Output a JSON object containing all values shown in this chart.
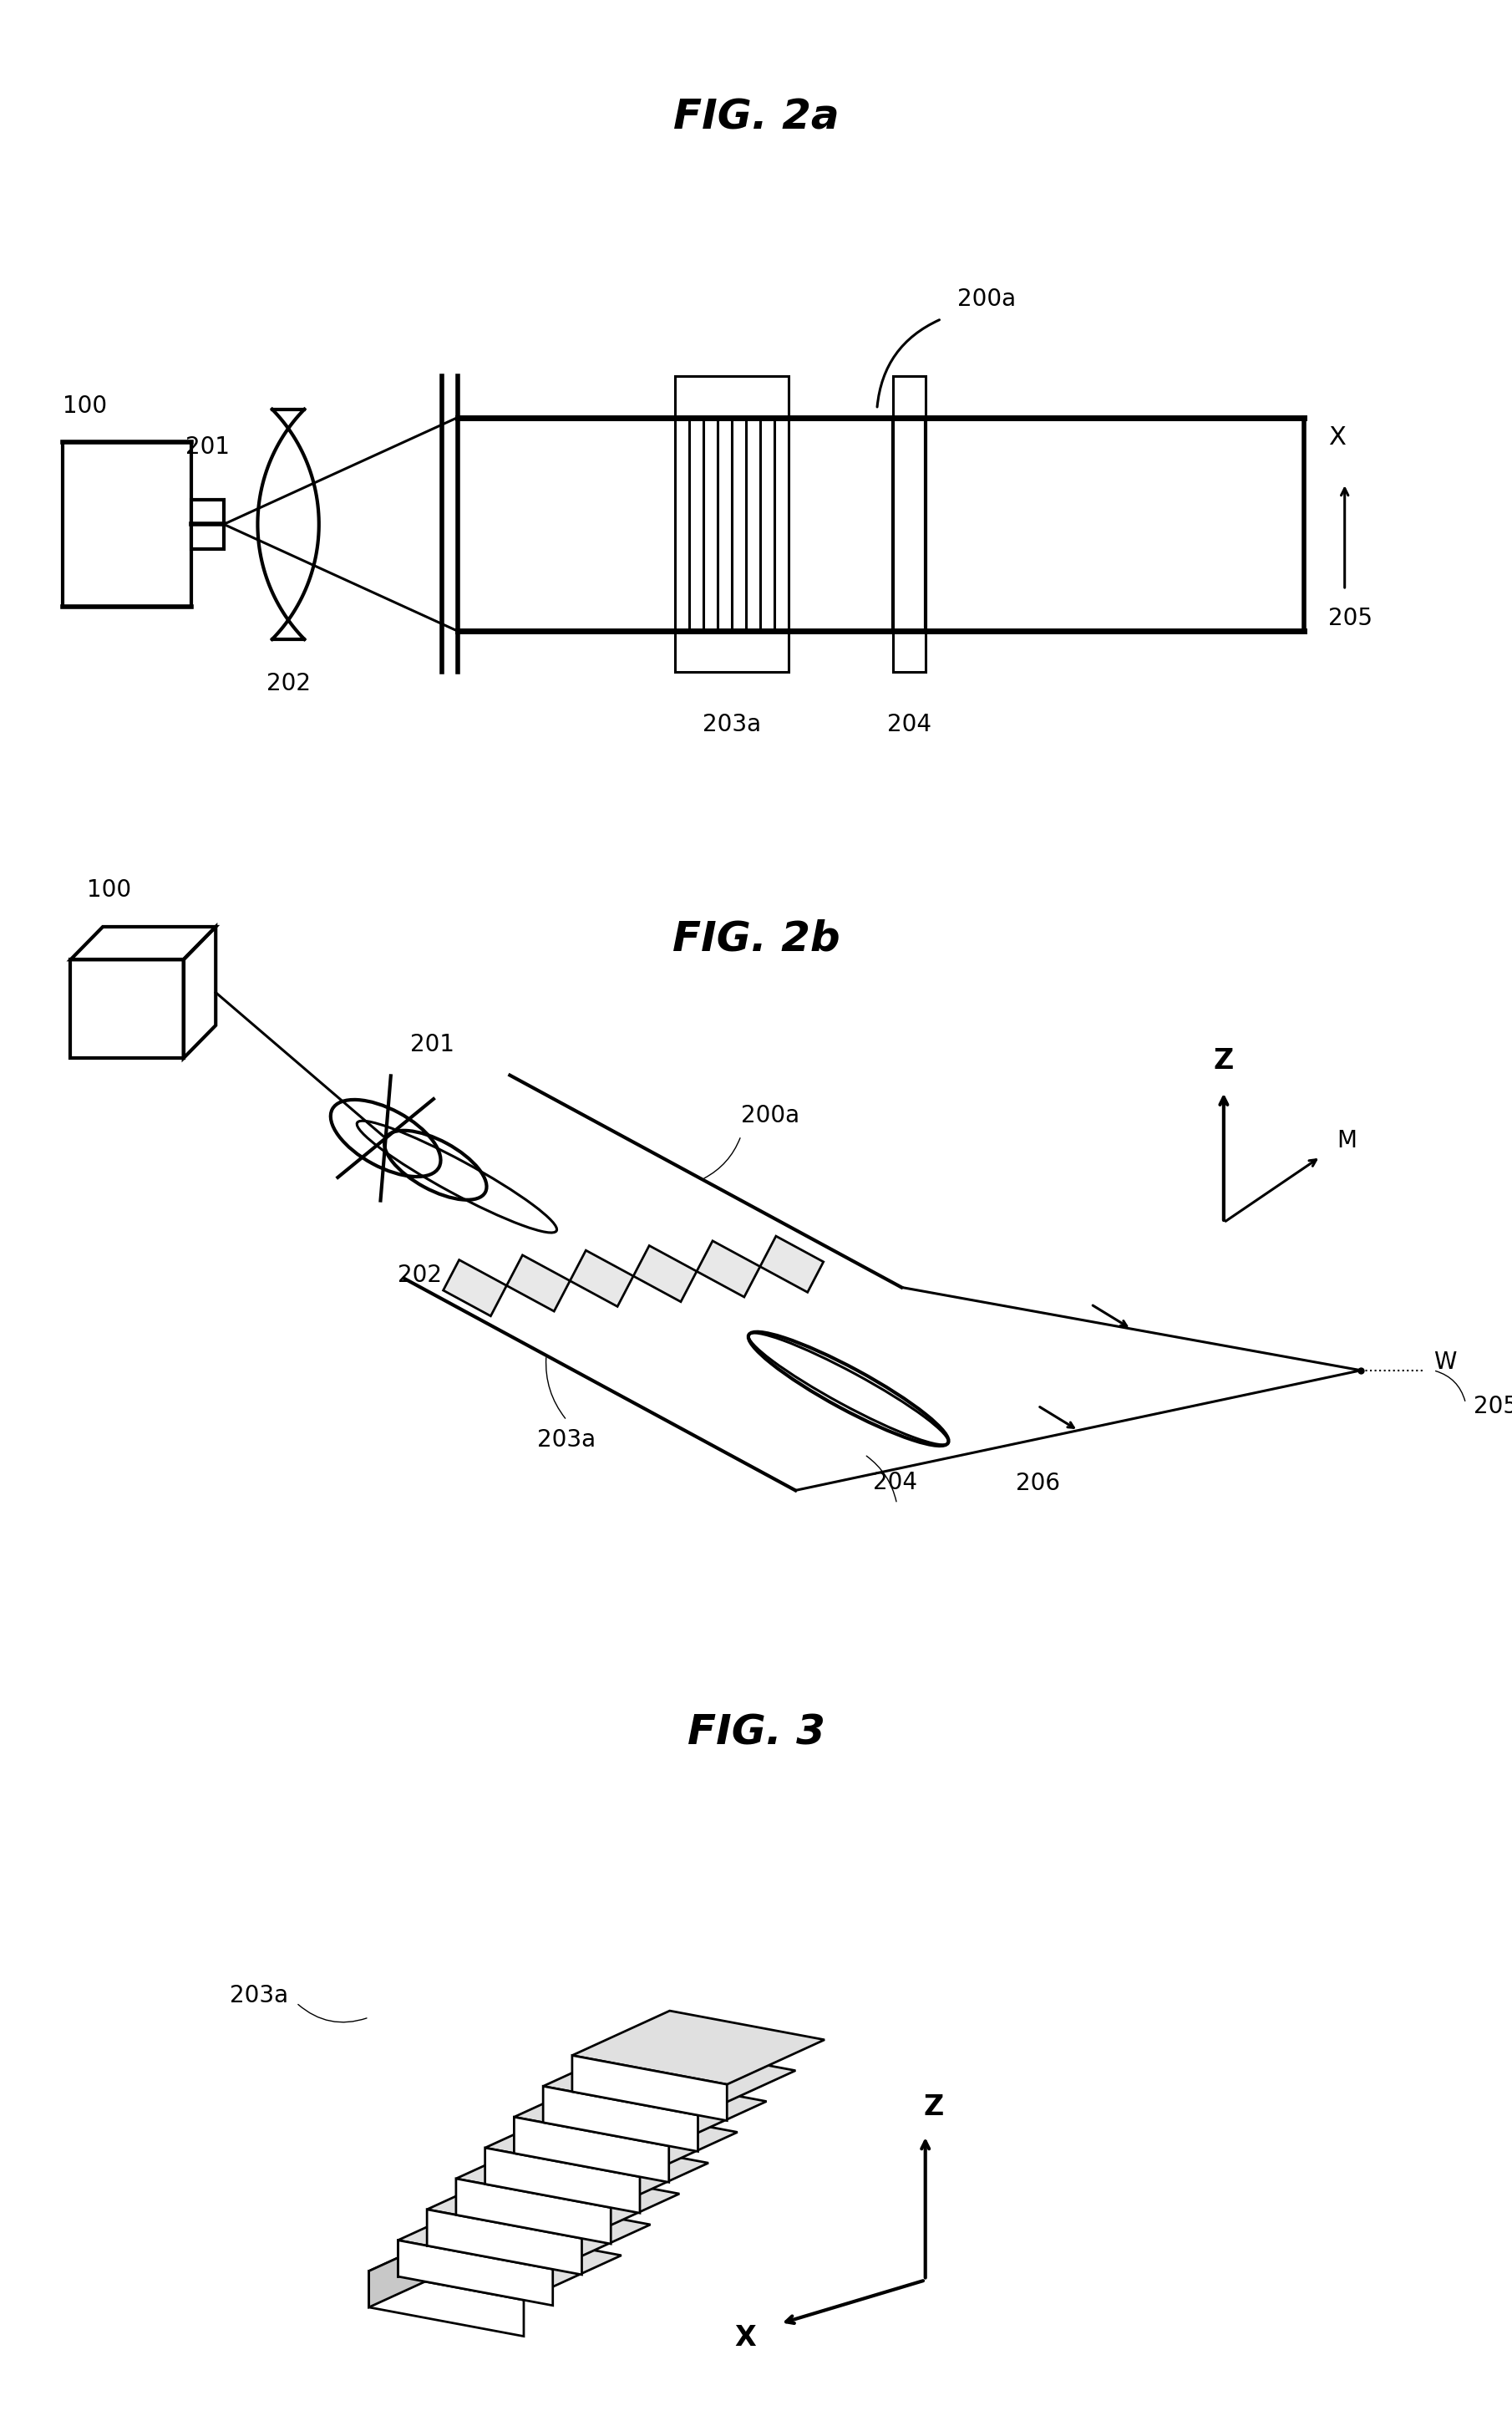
{
  "fig_title_2a": "FIG. 2a",
  "fig_title_2b": "FIG. 2b",
  "fig_title_3": "FIG. 3",
  "background_color": "#ffffff",
  "line_color": "#000000",
  "title_fontsize": 36,
  "label_fontsize": 20
}
